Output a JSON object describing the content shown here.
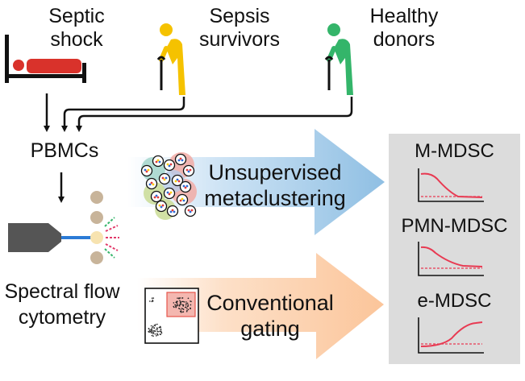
{
  "sources": {
    "septic_shock": [
      "Septic",
      "shock"
    ],
    "sepsis_survivors": [
      "Sepsis",
      "survivors"
    ],
    "healthy_donors": [
      "Healthy",
      "donors"
    ]
  },
  "pbmcs_label": "PBMCs",
  "cytometry_label": [
    "Spectral flow",
    "cytometry"
  ],
  "methods": {
    "unsupervised": [
      "Unsupervised",
      "metaclustering"
    ],
    "conventional": [
      "Conventional",
      "gating"
    ]
  },
  "results": {
    "m_mdsc": "M-MDSC",
    "pmn_mdsc": "PMN-MDSC",
    "e_mdsc": "e-MDSC"
  },
  "colors": {
    "bed_red": "#d9322b",
    "survivor_yellow": "#f5c200",
    "donor_green": "#34b56a",
    "blue_arrow": "#8fbfe3",
    "orange_arrow": "#fbc59a",
    "panel_gray": "#dcdcdc",
    "curve_red": "#e83a52"
  }
}
